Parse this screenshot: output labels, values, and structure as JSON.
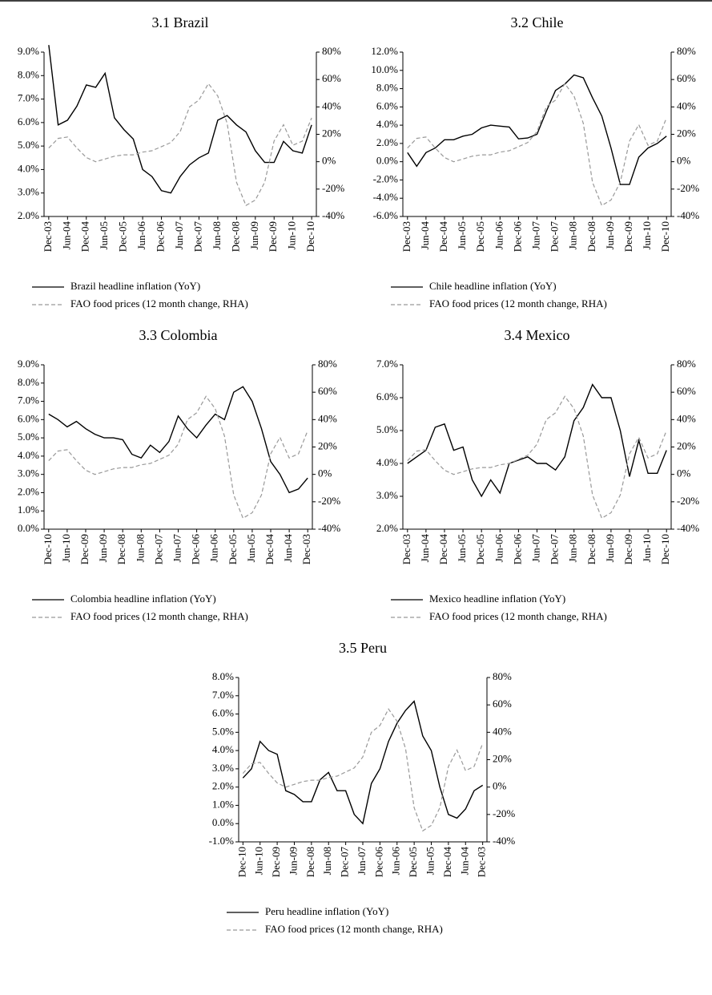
{
  "chart_data": [
    {
      "type": "line",
      "title": "3.1 Brazil",
      "categories": [
        "Dec-03",
        null,
        "Jun-04",
        null,
        "Dec-04",
        null,
        "Jun-05",
        null,
        "Dec-05",
        null,
        "Jun-06",
        null,
        "Dec-06",
        null,
        "Jun-07",
        null,
        "Dec-07",
        null,
        "Jun-08",
        null,
        "Dec-08",
        null,
        "Jun-09",
        null,
        "Dec-09",
        null,
        "Jun-10",
        null,
        "Dec-10"
      ],
      "series": [
        {
          "name": "Brazil headline inflation (YoY)",
          "color": "#000000",
          "dashed": false,
          "values": [
            9.3,
            5.9,
            6.1,
            6.7,
            7.6,
            7.5,
            8.1,
            6.2,
            5.7,
            5.3,
            4.0,
            3.7,
            3.1,
            3.0,
            3.7,
            4.2,
            4.5,
            4.7,
            6.1,
            6.3,
            5.9,
            5.6,
            4.8,
            4.3,
            4.3,
            5.2,
            4.8,
            4.7,
            5.9
          ]
        },
        {
          "name": "FAO food prices (12 month change, RHA)",
          "color": "#999999",
          "dashed": true,
          "axis": "y2",
          "values": [
            10,
            17,
            18,
            10,
            3,
            0,
            2,
            4,
            5,
            5,
            7,
            8,
            11,
            14,
            22,
            40,
            45,
            57,
            48,
            28,
            -15,
            -32,
            -28,
            -15,
            15,
            27,
            12,
            15,
            32
          ]
        }
      ],
      "ylim": [
        2,
        9
      ],
      "yticks": [
        {
          "value": 2,
          "label": "2.0%"
        },
        {
          "value": 3,
          "label": "3.0%"
        },
        {
          "value": 4,
          "label": "4.0%"
        },
        {
          "value": 5,
          "label": "5.0%"
        },
        {
          "value": 6,
          "label": "6.0%"
        },
        {
          "value": 7,
          "label": "7.0%"
        },
        {
          "value": 8,
          "label": "8.0%"
        },
        {
          "value": 9,
          "label": "9.0%"
        }
      ],
      "y2lim": [
        -40,
        80
      ],
      "y2ticks": [
        {
          "value": -40,
          "label": "-40%"
        },
        {
          "value": -20,
          "label": "-20%"
        },
        {
          "value": 0,
          "label": "0%"
        },
        {
          "value": 20,
          "label": "20%"
        },
        {
          "value": 40,
          "label": "40%"
        },
        {
          "value": 60,
          "label": "60%"
        },
        {
          "value": 80,
          "label": "80%"
        }
      ]
    },
    {
      "type": "line",
      "title": "3.2 Chile",
      "categories": [
        "Dec-03",
        null,
        "Jun-04",
        null,
        "Dec-04",
        null,
        "Jun-05",
        null,
        "Dec-05",
        null,
        "Jun-06",
        null,
        "Dec-06",
        null,
        "Jun-07",
        null,
        "Dec-07",
        null,
        "Jun-08",
        null,
        "Dec-08",
        null,
        "Jun-09",
        null,
        "Dec-09",
        null,
        "Jun-10",
        null,
        "Dec-10"
      ],
      "series": [
        {
          "name": "Chile headline inflation (YoY)",
          "color": "#000000",
          "dashed": false,
          "values": [
            1.0,
            -0.5,
            1.0,
            1.5,
            2.4,
            2.4,
            2.8,
            3.0,
            3.7,
            4.0,
            3.9,
            3.8,
            2.5,
            2.6,
            3.0,
            5.5,
            7.8,
            8.5,
            9.5,
            9.2,
            7.0,
            5.0,
            1.5,
            -2.5,
            -2.5,
            0.5,
            1.5,
            2.0,
            2.8
          ]
        },
        {
          "name": "FAO food prices (12 month change, RHA)",
          "color": "#999999",
          "dashed": true,
          "axis": "y2",
          "values": [
            10,
            17,
            18,
            10,
            3,
            0,
            2,
            4,
            5,
            5,
            7,
            8,
            11,
            14,
            22,
            40,
            45,
            57,
            48,
            28,
            -15,
            -32,
            -28,
            -15,
            15,
            27,
            12,
            15,
            32
          ]
        }
      ],
      "ylim": [
        -6,
        12
      ],
      "yticks": [
        {
          "value": -6,
          "label": "-6.0%"
        },
        {
          "value": -4,
          "label": "-4.0%"
        },
        {
          "value": -2,
          "label": "-2.0%"
        },
        {
          "value": 0,
          "label": "0.0%"
        },
        {
          "value": 2,
          "label": "2.0%"
        },
        {
          "value": 4,
          "label": "4.0%"
        },
        {
          "value": 6,
          "label": "6.0%"
        },
        {
          "value": 8,
          "label": "8.0%"
        },
        {
          "value": 10,
          "label": "10.0%"
        },
        {
          "value": 12,
          "label": "12.0%"
        }
      ],
      "y2lim": [
        -40,
        80
      ],
      "y2ticks": [
        {
          "value": -40,
          "label": "-40%"
        },
        {
          "value": -20,
          "label": "-20%"
        },
        {
          "value": 0,
          "label": "0%"
        },
        {
          "value": 20,
          "label": "20%"
        },
        {
          "value": 40,
          "label": "40%"
        },
        {
          "value": 60,
          "label": "60%"
        },
        {
          "value": 80,
          "label": "80%"
        }
      ]
    },
    {
      "type": "line",
      "title": "3.3 Colombia",
      "categories": [
        "Dec-10",
        null,
        "Jun-10",
        null,
        "Dec-09",
        null,
        "Jun-09",
        null,
        "Dec-08",
        null,
        "Jun-08",
        null,
        "Dec-07",
        null,
        "Jun-07",
        null,
        "Dec-06",
        null,
        "Jun-06",
        null,
        "Dec-05",
        null,
        "Jun-05",
        null,
        "Dec-04",
        null,
        "Jun-04",
        null,
        "Dec-03"
      ],
      "series": [
        {
          "name": "Colombia headline inflation (YoY)",
          "color": "#000000",
          "dashed": false,
          "values": [
            6.3,
            6.0,
            5.6,
            5.9,
            5.5,
            5.2,
            5.0,
            5.0,
            4.9,
            4.1,
            3.9,
            4.6,
            4.2,
            4.8,
            6.2,
            5.5,
            5.0,
            5.7,
            6.3,
            6.0,
            7.5,
            7.8,
            7.0,
            5.5,
            3.7,
            3.0,
            2.0,
            2.2,
            2.8
          ]
        },
        {
          "name": "FAO food prices (12 month change, RHA)",
          "color": "#999999",
          "dashed": true,
          "axis": "y2",
          "values": [
            10,
            17,
            18,
            10,
            3,
            0,
            2,
            4,
            5,
            5,
            7,
            8,
            11,
            14,
            22,
            40,
            45,
            57,
            48,
            28,
            -15,
            -32,
            -28,
            -15,
            15,
            27,
            12,
            15,
            32
          ]
        }
      ],
      "ylim": [
        0,
        9
      ],
      "yticks": [
        {
          "value": 0,
          "label": "0.0%"
        },
        {
          "value": 1,
          "label": "1.0%"
        },
        {
          "value": 2,
          "label": "2.0%"
        },
        {
          "value": 3,
          "label": "3.0%"
        },
        {
          "value": 4,
          "label": "4.0%"
        },
        {
          "value": 5,
          "label": "5.0%"
        },
        {
          "value": 6,
          "label": "6.0%"
        },
        {
          "value": 7,
          "label": "7.0%"
        },
        {
          "value": 8,
          "label": "8.0%"
        },
        {
          "value": 9,
          "label": "9.0%"
        }
      ],
      "y2lim": [
        -40,
        80
      ],
      "y2ticks": [
        {
          "value": -40,
          "label": "-40%"
        },
        {
          "value": -20,
          "label": "-20%"
        },
        {
          "value": 0,
          "label": "0%"
        },
        {
          "value": 20,
          "label": "20%"
        },
        {
          "value": 40,
          "label": "40%"
        },
        {
          "value": 60,
          "label": "60%"
        },
        {
          "value": 80,
          "label": "80%"
        }
      ]
    },
    {
      "type": "line",
      "title": "3.4 Mexico",
      "categories": [
        "Dec-03",
        null,
        "Jun-04",
        null,
        "Dec-04",
        null,
        "Jun-05",
        null,
        "Dec-05",
        null,
        "Jun-06",
        null,
        "Dec-06",
        null,
        "Jun-07",
        null,
        "Dec-07",
        null,
        "Jun-08",
        null,
        "Dec-08",
        null,
        "Jun-09",
        null,
        "Dec-09",
        null,
        "Jun-10",
        null,
        "Dec-10"
      ],
      "series": [
        {
          "name": "Mexico headline inflation (YoY)",
          "color": "#000000",
          "dashed": false,
          "values": [
            4.0,
            4.2,
            4.4,
            5.1,
            5.2,
            4.4,
            4.5,
            3.5,
            3.0,
            3.5,
            3.1,
            4.0,
            4.1,
            4.2,
            4.0,
            4.0,
            3.8,
            4.2,
            5.3,
            5.7,
            6.4,
            6.0,
            6.0,
            5.0,
            3.6,
            4.7,
            3.7,
            3.7,
            4.4
          ]
        },
        {
          "name": "FAO food prices (12 month change, RHA)",
          "color": "#999999",
          "dashed": true,
          "axis": "y2",
          "values": [
            10,
            17,
            18,
            10,
            3,
            0,
            2,
            4,
            5,
            5,
            7,
            8,
            11,
            14,
            22,
            40,
            45,
            57,
            48,
            28,
            -15,
            -32,
            -28,
            -15,
            15,
            27,
            12,
            15,
            32
          ]
        }
      ],
      "ylim": [
        2,
        7
      ],
      "yticks": [
        {
          "value": 2,
          "label": "2.0%"
        },
        {
          "value": 3,
          "label": "3.0%"
        },
        {
          "value": 4,
          "label": "4.0%"
        },
        {
          "value": 5,
          "label": "5.0%"
        },
        {
          "value": 6,
          "label": "6.0%"
        },
        {
          "value": 7,
          "label": "7.0%"
        }
      ],
      "y2lim": [
        -40,
        80
      ],
      "y2ticks": [
        {
          "value": -40,
          "label": "-40%"
        },
        {
          "value": -20,
          "label": "-20%"
        },
        {
          "value": 0,
          "label": "0%"
        },
        {
          "value": 20,
          "label": "20%"
        },
        {
          "value": 40,
          "label": "40%"
        },
        {
          "value": 60,
          "label": "60%"
        },
        {
          "value": 80,
          "label": "80%"
        }
      ]
    },
    {
      "type": "line",
      "title": "3.5 Peru",
      "categories": [
        "Dec-10",
        null,
        "Jun-10",
        null,
        "Dec-09",
        null,
        "Jun-09",
        null,
        "Dec-08",
        null,
        "Jun-08",
        null,
        "Dec-07",
        null,
        "Jun-07",
        null,
        "Dec-06",
        null,
        "Jun-06",
        null,
        "Dec-05",
        null,
        "Jun-05",
        null,
        "Dec-04",
        null,
        "Jun-04",
        null,
        "Dec-03"
      ],
      "series": [
        {
          "name": "Peru headline inflation (YoY)",
          "color": "#000000",
          "dashed": false,
          "values": [
            2.5,
            3.0,
            4.5,
            4.0,
            3.8,
            1.8,
            1.6,
            1.2,
            1.2,
            2.4,
            2.8,
            1.8,
            1.8,
            0.5,
            0.0,
            2.2,
            3.0,
            4.5,
            5.5,
            6.2,
            6.7,
            4.8,
            4.0,
            2.0,
            0.5,
            0.3,
            0.8,
            1.8,
            2.1
          ]
        },
        {
          "name": "FAO food prices (12 month change, RHA)",
          "color": "#999999",
          "dashed": true,
          "axis": "y2",
          "values": [
            10,
            17,
            18,
            10,
            3,
            0,
            2,
            4,
            5,
            5,
            7,
            8,
            11,
            14,
            22,
            40,
            45,
            57,
            48,
            28,
            -15,
            -32,
            -28,
            -15,
            15,
            27,
            12,
            15,
            32
          ]
        }
      ],
      "ylim": [
        -1,
        8
      ],
      "yticks": [
        {
          "value": -1,
          "label": "-1.0%"
        },
        {
          "value": 0,
          "label": "0.0%"
        },
        {
          "value": 1,
          "label": "1.0%"
        },
        {
          "value": 2,
          "label": "2.0%"
        },
        {
          "value": 3,
          "label": "3.0%"
        },
        {
          "value": 4,
          "label": "4.0%"
        },
        {
          "value": 5,
          "label": "5.0%"
        },
        {
          "value": 6,
          "label": "6.0%"
        },
        {
          "value": 7,
          "label": "7.0%"
        },
        {
          "value": 8,
          "label": "8.0%"
        }
      ],
      "y2lim": [
        -40,
        80
      ],
      "y2ticks": [
        {
          "value": -40,
          "label": "-40%"
        },
        {
          "value": -20,
          "label": "-20%"
        },
        {
          "value": 0,
          "label": "0%"
        },
        {
          "value": 20,
          "label": "20%"
        },
        {
          "value": 40,
          "label": "40%"
        },
        {
          "value": 60,
          "label": "60%"
        },
        {
          "value": 80,
          "label": "80%"
        }
      ]
    }
  ]
}
